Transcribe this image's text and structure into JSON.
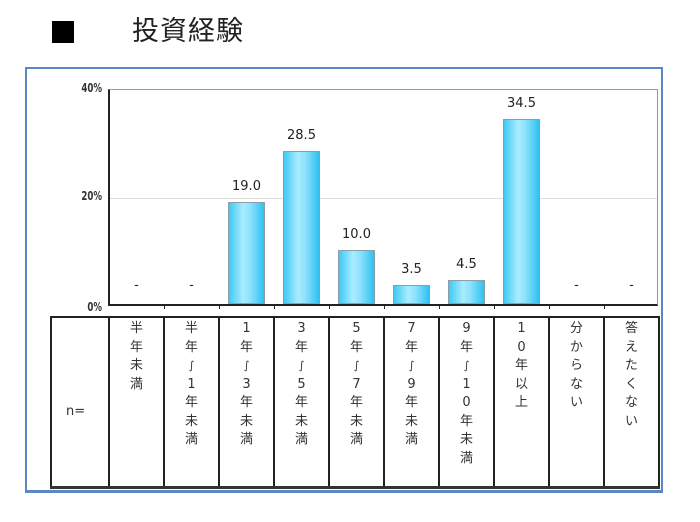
{
  "title": {
    "marker": "■",
    "text": "投資経験"
  },
  "table": {
    "n_label": "n="
  },
  "chart_data": {
    "type": "bar",
    "title": "投資経験",
    "categories": [
      "半年未満",
      "半年～1年未満",
      "1年～3年未満",
      "3年～5年未満",
      "5年～7年未満",
      "7年～9年未満",
      "9年～10年未満",
      "10年以上",
      "分からない",
      "答えたくない"
    ],
    "categories_vertical": [
      [
        "半",
        "年",
        "未",
        "満"
      ],
      [
        "半",
        "年",
        "∫",
        "1",
        "年",
        "未",
        "満"
      ],
      [
        "1",
        "年",
        "∫",
        "3",
        "年",
        "未",
        "満"
      ],
      [
        "3",
        "年",
        "∫",
        "5",
        "年",
        "未",
        "満"
      ],
      [
        "5",
        "年",
        "∫",
        "7",
        "年",
        "未",
        "満"
      ],
      [
        "7",
        "年",
        "∫",
        "9",
        "年",
        "未",
        "満"
      ],
      [
        "9",
        "年",
        "∫",
        "1",
        "0",
        "年",
        "未",
        "満"
      ],
      [
        "1",
        "0",
        "年",
        "以",
        "上"
      ],
      [
        "分",
        "か",
        "ら",
        "な",
        "い"
      ],
      [
        "答",
        "え",
        "た",
        "く",
        "な",
        "い"
      ]
    ],
    "values": [
      0,
      0,
      19.0,
      28.5,
      10.0,
      3.5,
      4.5,
      34.5,
      0,
      0
    ],
    "value_labels": [
      "-",
      "-",
      "19.0",
      "28.5",
      "10.0",
      "3.5",
      "4.5",
      "34.5",
      "-",
      "-"
    ],
    "xlabel": "",
    "ylabel": "",
    "yticks": [
      "0%",
      "20%",
      "40%"
    ],
    "ylim": [
      0,
      40
    ],
    "grid": true,
    "legend": null,
    "bar_color": "#3fc9f5",
    "frame_color": "#5b87c4"
  }
}
